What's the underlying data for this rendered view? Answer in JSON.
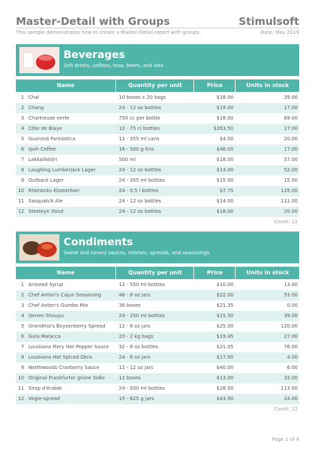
{
  "header": {
    "title": "Master-Detail with Groups",
    "brand": "Stimulsoft",
    "subtitle": "This sample demonstrates how to create a Master-Detail report with groups.",
    "date": "Date: May 2019"
  },
  "groups": [
    {
      "name": "Beverages",
      "description": "Soft drinks, coffees, teas, beers, and ales",
      "columns": [
        "Name",
        "Quantity per unit",
        "Price",
        "Units in stock"
      ],
      "rows": [
        [
          "1",
          "Chai",
          "10 boxes x 20 bags",
          "$18.00",
          "39.00"
        ],
        [
          "2",
          "Chang",
          "24 - 12 oz bottles",
          "$19.00",
          "17.00"
        ],
        [
          "3",
          "Chartreuse verte",
          "750 cc per bottle",
          "$18.00",
          "69.00"
        ],
        [
          "4",
          "Côte de Blaye",
          "12 - 75 cl bottles",
          "$263.50",
          "17.00"
        ],
        [
          "5",
          "Guaraná Fantástica",
          "12 - 355 ml cans",
          "$4.50",
          "20.00"
        ],
        [
          "6",
          "Ipoh Coffee",
          "16 - 500 g tins",
          "$46.00",
          "17.00"
        ],
        [
          "7",
          "Lakkalikööri",
          "500 ml",
          "$18.00",
          "57.00"
        ],
        [
          "8",
          "Laughing Lumberjack Lager",
          "24 - 12 oz bottles",
          "$14.00",
          "52.00"
        ],
        [
          "9",
          "Outback Lager",
          "24 - 355 ml bottles",
          "$15.00",
          "15.00"
        ],
        [
          "10",
          "Rhönbräu Klosterbier",
          "24 - 0.5 l bottles",
          "$7.75",
          "125.00"
        ],
        [
          "11",
          "Sasquatch Ale",
          "24 - 12 oz bottles",
          "$14.00",
          "111.00"
        ],
        [
          "12",
          "Steeleye Stout",
          "24 - 12 oz bottles",
          "$18.00",
          "20.00"
        ]
      ],
      "count": "Count: 12"
    },
    {
      "name": "Condiments",
      "description": "Sweet and savory sauces, relishes, spreads, and seasonings",
      "columns": [
        "Name",
        "Quantity per unit",
        "Price",
        "Units in stock"
      ],
      "rows": [
        [
          "1",
          "Aniseed Syrup",
          "12 - 550 ml bottles",
          "$10.00",
          "13.00"
        ],
        [
          "2",
          "Chef Anton's Cajun Seasoning",
          "48 - 6 oz jars",
          "$22.00",
          "53.00"
        ],
        [
          "3",
          "Chef Anton's Gumbo Mix",
          "36 boxes",
          "$21.35",
          "0.00"
        ],
        [
          "4",
          "Genen Shouyu",
          "24 - 250 ml bottles",
          "$15.50",
          "39.00"
        ],
        [
          "5",
          "Grandma's Boysenberry Spread",
          "12 - 8 oz jars",
          "$25.00",
          "120.00"
        ],
        [
          "6",
          "Gula Malacca",
          "20 - 2 kg bags",
          "$19.45",
          "27.00"
        ],
        [
          "7",
          "Louisiana Fiery Hot Pepper Sauce",
          "32 - 8 oz bottles",
          "$21.05",
          "76.00"
        ],
        [
          "8",
          "Louisiana Hot Spiced Okra",
          "24 - 8 oz jars",
          "$17.00",
          "4.00"
        ],
        [
          "9",
          "Northwoods Cranberry Sauce",
          "12 - 12 oz jars",
          "$40.00",
          "6.00"
        ],
        [
          "10",
          "Original Frankfurter grüne Soße",
          "12 boxes",
          "$13.00",
          "32.00"
        ],
        [
          "11",
          "Sirop d'érable",
          "24 - 500 ml bottles",
          "$28.50",
          "113.00"
        ],
        [
          "12",
          "Vegie-spread",
          "15 - 625 g jars",
          "$43.90",
          "24.00"
        ]
      ],
      "count": "Count: 12"
    }
  ],
  "footer": {
    "page": "Page 1 of 4"
  }
}
